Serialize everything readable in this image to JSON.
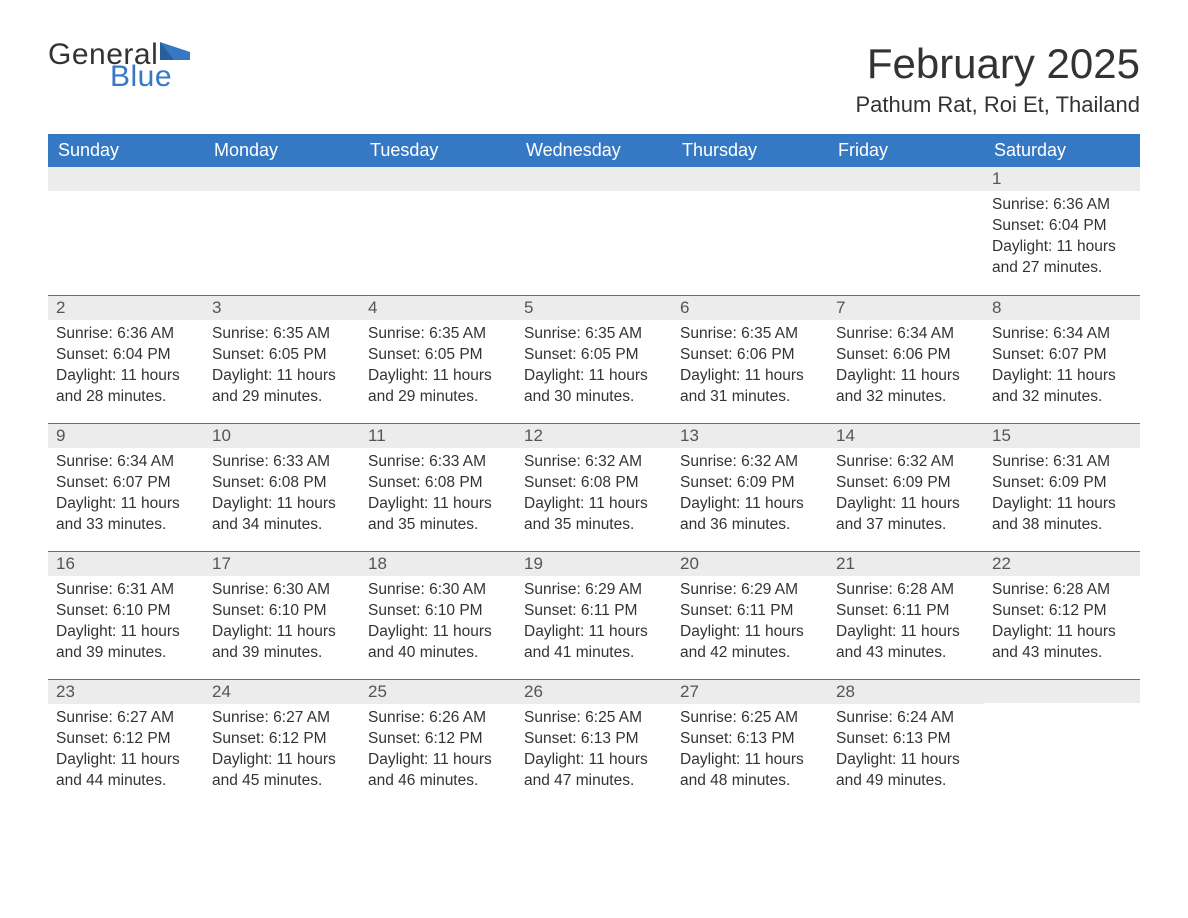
{
  "logo": {
    "text_general": "General",
    "text_blue": "Blue",
    "flag_color": "#3578c4"
  },
  "title": "February 2025",
  "location": "Pathum Rat, Roi Et, Thailand",
  "colors": {
    "header_bg": "#3578c4",
    "header_text": "#ffffff",
    "daynum_bg": "#ececec",
    "border_top": "#3578c4",
    "body_text": "#333333"
  },
  "day_headers": [
    "Sunday",
    "Monday",
    "Tuesday",
    "Wednesday",
    "Thursday",
    "Friday",
    "Saturday"
  ],
  "weeks": [
    [
      {
        "num": "",
        "sunrise": "",
        "sunset": "",
        "daylight": ""
      },
      {
        "num": "",
        "sunrise": "",
        "sunset": "",
        "daylight": ""
      },
      {
        "num": "",
        "sunrise": "",
        "sunset": "",
        "daylight": ""
      },
      {
        "num": "",
        "sunrise": "",
        "sunset": "",
        "daylight": ""
      },
      {
        "num": "",
        "sunrise": "",
        "sunset": "",
        "daylight": ""
      },
      {
        "num": "",
        "sunrise": "",
        "sunset": "",
        "daylight": ""
      },
      {
        "num": "1",
        "sunrise": "Sunrise: 6:36 AM",
        "sunset": "Sunset: 6:04 PM",
        "daylight": "Daylight: 11 hours and 27 minutes."
      }
    ],
    [
      {
        "num": "2",
        "sunrise": "Sunrise: 6:36 AM",
        "sunset": "Sunset: 6:04 PM",
        "daylight": "Daylight: 11 hours and 28 minutes."
      },
      {
        "num": "3",
        "sunrise": "Sunrise: 6:35 AM",
        "sunset": "Sunset: 6:05 PM",
        "daylight": "Daylight: 11 hours and 29 minutes."
      },
      {
        "num": "4",
        "sunrise": "Sunrise: 6:35 AM",
        "sunset": "Sunset: 6:05 PM",
        "daylight": "Daylight: 11 hours and 29 minutes."
      },
      {
        "num": "5",
        "sunrise": "Sunrise: 6:35 AM",
        "sunset": "Sunset: 6:05 PM",
        "daylight": "Daylight: 11 hours and 30 minutes."
      },
      {
        "num": "6",
        "sunrise": "Sunrise: 6:35 AM",
        "sunset": "Sunset: 6:06 PM",
        "daylight": "Daylight: 11 hours and 31 minutes."
      },
      {
        "num": "7",
        "sunrise": "Sunrise: 6:34 AM",
        "sunset": "Sunset: 6:06 PM",
        "daylight": "Daylight: 11 hours and 32 minutes."
      },
      {
        "num": "8",
        "sunrise": "Sunrise: 6:34 AM",
        "sunset": "Sunset: 6:07 PM",
        "daylight": "Daylight: 11 hours and 32 minutes."
      }
    ],
    [
      {
        "num": "9",
        "sunrise": "Sunrise: 6:34 AM",
        "sunset": "Sunset: 6:07 PM",
        "daylight": "Daylight: 11 hours and 33 minutes."
      },
      {
        "num": "10",
        "sunrise": "Sunrise: 6:33 AM",
        "sunset": "Sunset: 6:08 PM",
        "daylight": "Daylight: 11 hours and 34 minutes."
      },
      {
        "num": "11",
        "sunrise": "Sunrise: 6:33 AM",
        "sunset": "Sunset: 6:08 PM",
        "daylight": "Daylight: 11 hours and 35 minutes."
      },
      {
        "num": "12",
        "sunrise": "Sunrise: 6:32 AM",
        "sunset": "Sunset: 6:08 PM",
        "daylight": "Daylight: 11 hours and 35 minutes."
      },
      {
        "num": "13",
        "sunrise": "Sunrise: 6:32 AM",
        "sunset": "Sunset: 6:09 PM",
        "daylight": "Daylight: 11 hours and 36 minutes."
      },
      {
        "num": "14",
        "sunrise": "Sunrise: 6:32 AM",
        "sunset": "Sunset: 6:09 PM",
        "daylight": "Daylight: 11 hours and 37 minutes."
      },
      {
        "num": "15",
        "sunrise": "Sunrise: 6:31 AM",
        "sunset": "Sunset: 6:09 PM",
        "daylight": "Daylight: 11 hours and 38 minutes."
      }
    ],
    [
      {
        "num": "16",
        "sunrise": "Sunrise: 6:31 AM",
        "sunset": "Sunset: 6:10 PM",
        "daylight": "Daylight: 11 hours and 39 minutes."
      },
      {
        "num": "17",
        "sunrise": "Sunrise: 6:30 AM",
        "sunset": "Sunset: 6:10 PM",
        "daylight": "Daylight: 11 hours and 39 minutes."
      },
      {
        "num": "18",
        "sunrise": "Sunrise: 6:30 AM",
        "sunset": "Sunset: 6:10 PM",
        "daylight": "Daylight: 11 hours and 40 minutes."
      },
      {
        "num": "19",
        "sunrise": "Sunrise: 6:29 AM",
        "sunset": "Sunset: 6:11 PM",
        "daylight": "Daylight: 11 hours and 41 minutes."
      },
      {
        "num": "20",
        "sunrise": "Sunrise: 6:29 AM",
        "sunset": "Sunset: 6:11 PM",
        "daylight": "Daylight: 11 hours and 42 minutes."
      },
      {
        "num": "21",
        "sunrise": "Sunrise: 6:28 AM",
        "sunset": "Sunset: 6:11 PM",
        "daylight": "Daylight: 11 hours and 43 minutes."
      },
      {
        "num": "22",
        "sunrise": "Sunrise: 6:28 AM",
        "sunset": "Sunset: 6:12 PM",
        "daylight": "Daylight: 11 hours and 43 minutes."
      }
    ],
    [
      {
        "num": "23",
        "sunrise": "Sunrise: 6:27 AM",
        "sunset": "Sunset: 6:12 PM",
        "daylight": "Daylight: 11 hours and 44 minutes."
      },
      {
        "num": "24",
        "sunrise": "Sunrise: 6:27 AM",
        "sunset": "Sunset: 6:12 PM",
        "daylight": "Daylight: 11 hours and 45 minutes."
      },
      {
        "num": "25",
        "sunrise": "Sunrise: 6:26 AM",
        "sunset": "Sunset: 6:12 PM",
        "daylight": "Daylight: 11 hours and 46 minutes."
      },
      {
        "num": "26",
        "sunrise": "Sunrise: 6:25 AM",
        "sunset": "Sunset: 6:13 PM",
        "daylight": "Daylight: 11 hours and 47 minutes."
      },
      {
        "num": "27",
        "sunrise": "Sunrise: 6:25 AM",
        "sunset": "Sunset: 6:13 PM",
        "daylight": "Daylight: 11 hours and 48 minutes."
      },
      {
        "num": "28",
        "sunrise": "Sunrise: 6:24 AM",
        "sunset": "Sunset: 6:13 PM",
        "daylight": "Daylight: 11 hours and 49 minutes."
      },
      {
        "num": "",
        "sunrise": "",
        "sunset": "",
        "daylight": ""
      }
    ]
  ]
}
